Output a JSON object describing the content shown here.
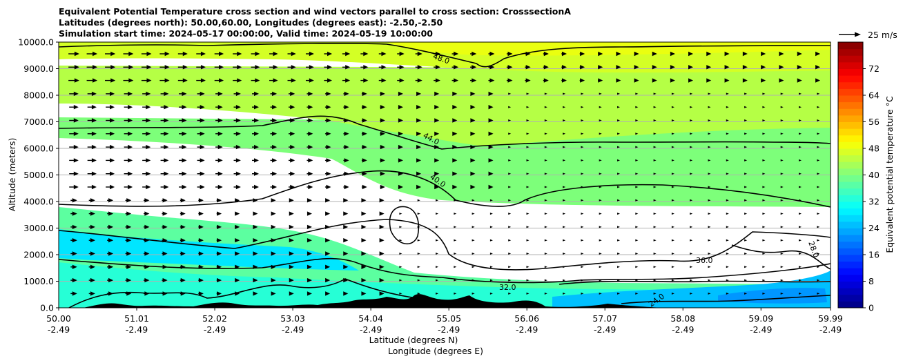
{
  "title": {
    "line1": "Equivalent Potential Temperature cross section and wind vectors parallel to cross section: CrosssectionA",
    "line2": "Latitudes (degrees north): 50.00,60.00, Longitudes (degrees east): -2.50,-2.50",
    "line3": "Simulation start time: 2024-05-17 00:00:00, Valid time: 2024-05-19 10:00:00"
  },
  "quiver_key_label": "25 m/s",
  "colors": {
    "terrain": "#000000",
    "contour": "#000000",
    "grid": "#b0b0b0"
  },
  "chart_data": {
    "type": "heatmap",
    "subtype": "filled contour cross-section with wind vectors",
    "ylabel": "Altitude (meters)",
    "xlabel_line1": "Latitude (degrees N)",
    "xlabel_line2": "Longitude (degrees E)",
    "ylim": [
      0,
      10000
    ],
    "yticks": [
      "0.0",
      "1000.0",
      "2000.0",
      "3000.0",
      "4000.0",
      "5000.0",
      "6000.0",
      "7000.0",
      "8000.0",
      "9000.0",
      "10000.0"
    ],
    "xlim": [
      50.0,
      59.99
    ],
    "xticks": [
      {
        "lat": "50.00",
        "lon": "-2.49"
      },
      {
        "lat": "51.01",
        "lon": "-2.49"
      },
      {
        "lat": "52.02",
        "lon": "-2.49"
      },
      {
        "lat": "53.03",
        "lon": "-2.49"
      },
      {
        "lat": "54.04",
        "lon": "-2.49"
      },
      {
        "lat": "55.05",
        "lon": "-2.49"
      },
      {
        "lat": "56.06",
        "lon": "-2.49"
      },
      {
        "lat": "57.07",
        "lon": "-2.49"
      },
      {
        "lat": "58.08",
        "lon": "-2.49"
      },
      {
        "lat": "59.09",
        "lon": "-2.49"
      },
      {
        "lat": "59.99",
        "lon": "-2.49"
      }
    ],
    "grid": "horizontal",
    "colorbar": {
      "label": "Equivalent potential temperature °C",
      "range": [
        0,
        80
      ],
      "step": 2,
      "ticks": [
        "0",
        "8",
        "16",
        "24",
        "32",
        "40",
        "48",
        "56",
        "64",
        "72"
      ],
      "colormap": "jet"
    },
    "contour_labels": [
      "48.0",
      "44.0",
      "40.0",
      "36.0",
      "32.0",
      "28.0",
      "24.0"
    ],
    "theta_e_profile": {
      "altitudes": [
        0,
        1000,
        2000,
        3000,
        4000,
        5000,
        6000,
        7000,
        8000,
        9000,
        10000
      ],
      "values": [
        33,
        32,
        30,
        33,
        36,
        39,
        42,
        45,
        47,
        48,
        49
      ]
    }
  }
}
